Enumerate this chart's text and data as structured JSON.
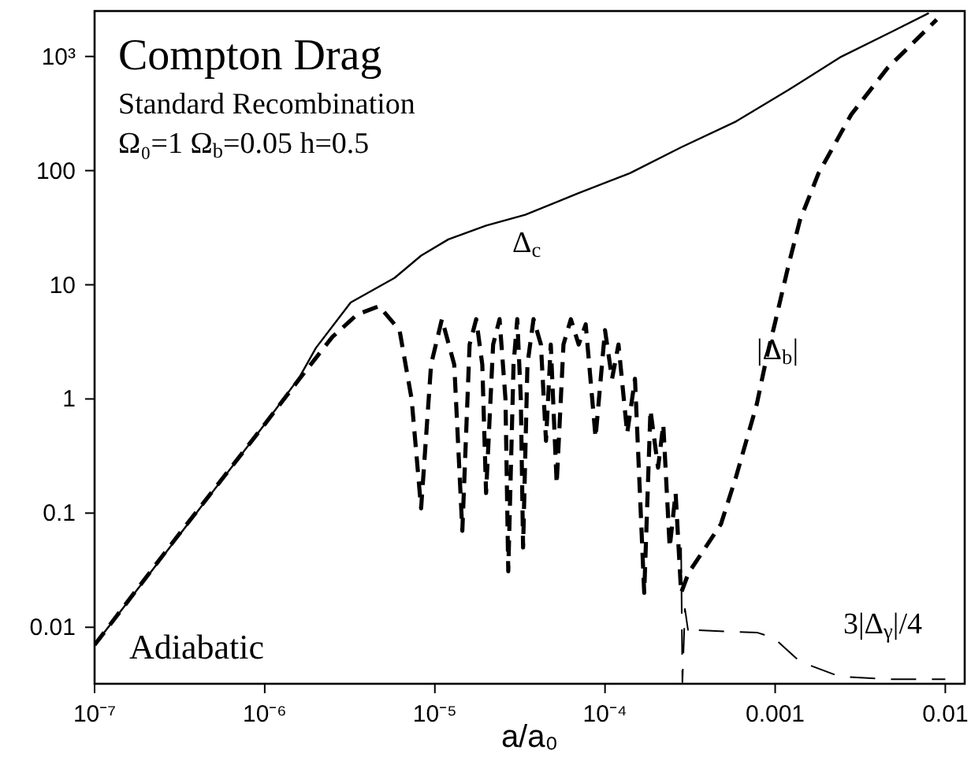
{
  "chart_data": {
    "type": "line",
    "title": "Compton Drag",
    "subtitle": "Standard Recombination",
    "xlabel": "a/a₀",
    "annotations": [
      "Ω₀=1  Ω$_{b}$=0.05  h=0.5",
      "Adiabatic"
    ],
    "log": "xy",
    "marker": "none",
    "xlim": [
      1e-07,
      0.013
    ],
    "xticks": [
      {
        "value": 1e-07,
        "label": "10⁻⁷"
      },
      {
        "value": 1e-06,
        "label": "10⁻⁶"
      },
      {
        "value": 1e-05,
        "label": "10⁻⁵"
      },
      {
        "value": 0.0001,
        "label": "10⁻⁴"
      },
      0.001,
      0.01
    ],
    "ylim": [
      0.0032,
      2500
    ],
    "yticks": [
      0.01,
      0.1,
      1,
      10,
      100,
      {
        "value": 1000,
        "label": "10³"
      }
    ],
    "series": [
      {
        "name": "Δ$_{c}$",
        "color": "#000000",
        "line_style": "solid",
        "x": [
          1e-07,
          1e-06,
          1.6e-06,
          2e-06,
          3.2e-06,
          5.8e-06,
          8.3e-06,
          1.2e-05,
          2e-05,
          3.4e-05,
          6.9e-05,
          0.00014,
          0.00028,
          0.00059,
          0.0012,
          0.0024,
          0.0049,
          0.008
        ],
        "values": [
          0.007,
          0.6,
          1.55,
          2.8,
          7,
          11.5,
          18,
          25,
          33,
          41,
          63,
          95,
          160,
          270,
          510,
          980,
          1660,
          2400
        ]
      },
      {
        "name": "|Δ$_{b}$|",
        "color": "#000000",
        "line_style": "dashed",
        "x": [
          1e-07,
          3e-07,
          1e-06,
          1.6e-06,
          2.5e-06,
          3.5e-06,
          4.7e-06,
          6.2e-06,
          7.3e-06,
          8.3e-06,
          9.5e-06,
          1.1e-05,
          1.3e-05,
          1.45e-05,
          1.6e-05,
          1.75e-05,
          1.9e-05,
          2e-05,
          2.2e-05,
          2.4e-05,
          2.6e-05,
          2.7e-05,
          2.9e-05,
          3.05e-05,
          3.2e-05,
          3.3e-05,
          3.5e-05,
          3.8e-05,
          4.2e-05,
          4.5e-05,
          4.8e-05,
          5.2e-05,
          5.7e-05,
          6.3e-05,
          7e-05,
          7.7e-05,
          8.8e-05,
          0.0001,
          0.00011,
          0.00012,
          0.000135,
          0.00015,
          0.00017,
          0.000185,
          0.000205,
          0.00022,
          0.00024,
          0.00026,
          0.00028,
          0.00031,
          0.00048,
          0.00059,
          0.00078,
          0.00089,
          0.001,
          0.0012,
          0.0014,
          0.0018,
          0.0028,
          0.0046,
          0.0089
        ],
        "values": [
          0.007,
          0.06,
          0.6,
          1.5,
          3.5,
          5.5,
          6.5,
          4,
          1,
          0.11,
          2,
          5,
          2,
          0.07,
          3,
          5,
          2,
          0.15,
          3,
          5,
          1,
          0.031,
          2,
          5,
          1,
          0.05,
          2,
          5,
          3,
          0.43,
          3,
          0.18,
          3,
          5,
          3,
          4.5,
          0.46,
          4,
          1.5,
          3,
          0.5,
          1.5,
          0.02,
          0.8,
          0.25,
          0.6,
          0.05,
          0.15,
          0.02,
          0.03,
          0.08,
          0.21,
          0.9,
          2.3,
          4.7,
          15,
          37,
          95,
          310,
          800,
          2100
        ]
      },
      {
        "name": "3|Δ$_{γ}$|/4",
        "color": "#000000",
        "line_style": "dashed",
        "x": [
          0.00028,
          0.000285,
          0.000295,
          0.00031,
          0.00033,
          0.0005,
          0.00078,
          0.00098,
          0.0014,
          0.0024,
          0.0049,
          0.01
        ],
        "values": [
          0.05,
          0.0033,
          0.0145,
          0.0087,
          0.0095,
          0.0092,
          0.009,
          0.0081,
          0.005,
          0.0037,
          0.0035,
          0.0035
        ]
      }
    ]
  }
}
